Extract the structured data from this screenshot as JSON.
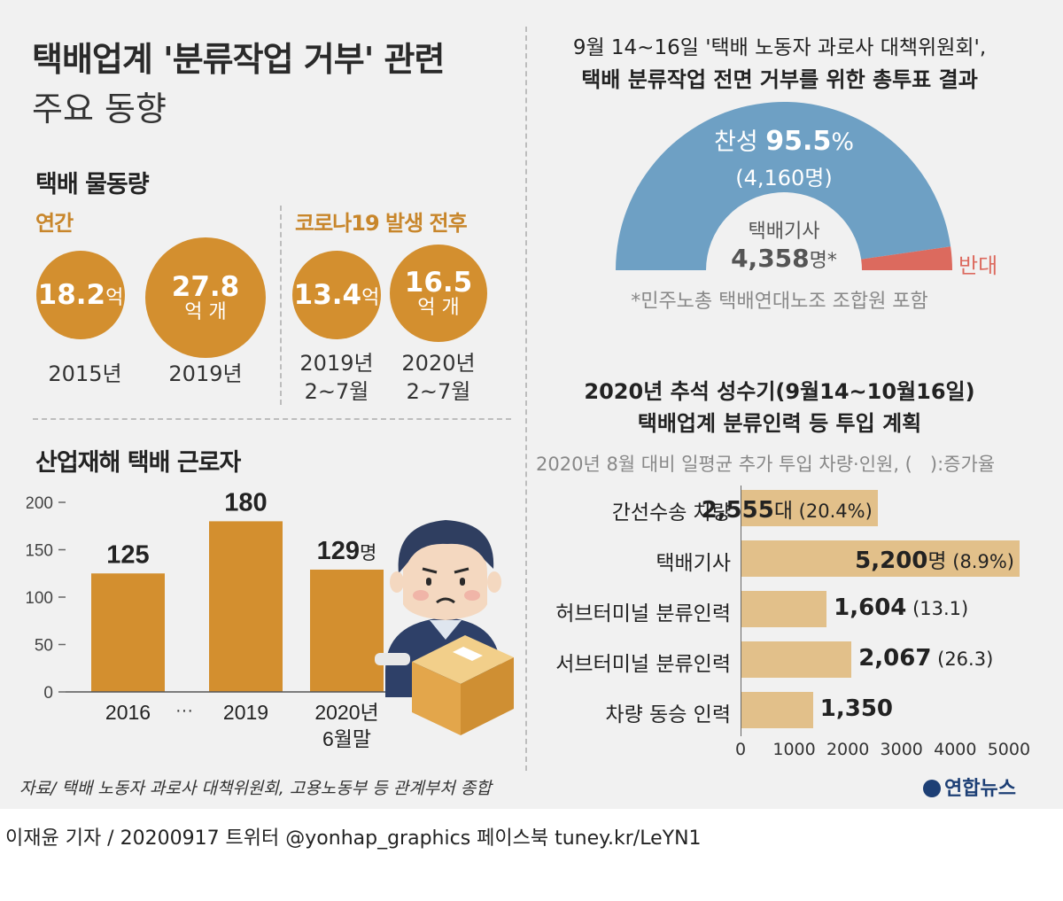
{
  "title": {
    "line1": "택배업계 '분류작업 거부' 관련",
    "line2": "주요 동향"
  },
  "volume": {
    "heading": "택배 물동량",
    "annual_label": "연간",
    "covid_label": "코로나19 발생 전후",
    "items": [
      {
        "value": "18.2",
        "unit": "억",
        "year": "2015년",
        "period": ""
      },
      {
        "value": "27.8",
        "unit": "억 개",
        "year": "2019년",
        "period": ""
      },
      {
        "value": "13.4",
        "unit": "억",
        "year": "2019년",
        "period": "2~7월"
      },
      {
        "value": "16.5",
        "unit": "억 개",
        "year": "2020년",
        "period": "2~7월"
      }
    ]
  },
  "vote": {
    "title_line1": "9월 14~16일 '택배 노동자 과로사 대책위원회',",
    "title_line2": "택배 분류작업 전면 거부를 위한 총투표 결과",
    "approve_label": "찬성",
    "approve_pct": 95.5,
    "approve_pct_text": "95.5",
    "pct_sign": "%",
    "approve_count": "(4,160명)",
    "oppose_label": "반대",
    "center_label": "택배기사",
    "center_value": "4,358",
    "center_unit": "명*",
    "footnote": "*민주노총 택배연대노조 조합원 포함",
    "colors": {
      "approve": "#6ea0c4",
      "oppose": "#dc6a5e"
    }
  },
  "chart_data": [
    {
      "type": "bar",
      "title": "산업재해 택배 근로자",
      "categories": [
        "2016",
        "2019",
        "2020년 6월말"
      ],
      "category_lines": [
        [
          "2016"
        ],
        [
          "2019"
        ],
        [
          "2020년",
          "6월말"
        ]
      ],
      "values": [
        125,
        180,
        129
      ],
      "value_labels": [
        "125",
        "180",
        "129"
      ],
      "unit_suffix": [
        "",
        "",
        "명"
      ],
      "gap_marker": "···",
      "ylim": [
        0,
        200
      ],
      "yticks": [
        0,
        50,
        100,
        150,
        200
      ],
      "ytick_labels": [
        "0",
        "50",
        "100",
        "150",
        "200"
      ],
      "color": "#d38f2f"
    },
    {
      "type": "bar",
      "orientation": "horizontal",
      "title_line1": "2020년 추석 성수기(9월14~10월16일)",
      "title_line2": "택배업계 분류인력 등 투입 계획",
      "subtitle": "2020년 8월 대비 일평균 추가 투입 차량·인원, (   ):증가율",
      "categories": [
        "간선수송 차량",
        "택배기사",
        "허브터미널 분류인력",
        "서브터미널 분류인력",
        "차량 동승 인력"
      ],
      "values": [
        2555,
        5200,
        1604,
        2067,
        1350
      ],
      "value_labels": [
        "2,555",
        "5,200",
        "1,604",
        "2,067",
        "1,350"
      ],
      "value_units": [
        "대",
        "명",
        "",
        "",
        ""
      ],
      "growth_labels": [
        "(20.4%)",
        "(8.9%)",
        "(13.1)",
        "(26.3)",
        ""
      ],
      "xlim": [
        0,
        5200
      ],
      "xticks": [
        0,
        1000,
        2000,
        3000,
        4000,
        5000
      ],
      "xtick_labels": [
        "0",
        "1000",
        "2000",
        "3000",
        "4000",
        "5000"
      ],
      "color": "#e2c08a"
    }
  ],
  "footer": {
    "source": "자료/ 택배 노동자 과로사 대책위원회, 고용노동부 등 관계부처 종합",
    "logo": "연합뉴스",
    "credit": "이재윤 기자 / 20200917   트위터 @yonhap_graphics  페이스북 tuney.kr/LeYN1"
  }
}
